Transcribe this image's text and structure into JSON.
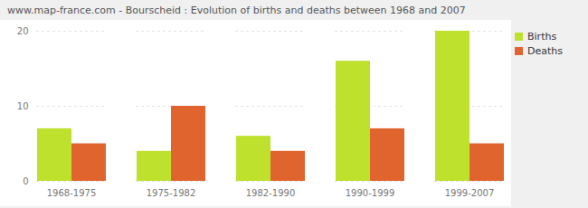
{
  "chart_data": {
    "type": "bar",
    "title": "www.map-france.com - Bourscheid : Evolution of births and deaths between 1968 and 2007",
    "categories": [
      "1968-1975",
      "1975-1982",
      "1982-1990",
      "1990-1999",
      "1999-2007"
    ],
    "series": [
      {
        "name": "Births",
        "color": "#bde12d",
        "values": [
          7,
          4,
          6,
          16,
          20
        ]
      },
      {
        "name": "Deaths",
        "color": "#e0642e",
        "values": [
          5,
          10,
          4,
          7,
          5
        ]
      }
    ],
    "ylim": [
      0,
      20
    ],
    "yticks": [
      0,
      10,
      20
    ],
    "grid": true,
    "legend": "upper right"
  }
}
